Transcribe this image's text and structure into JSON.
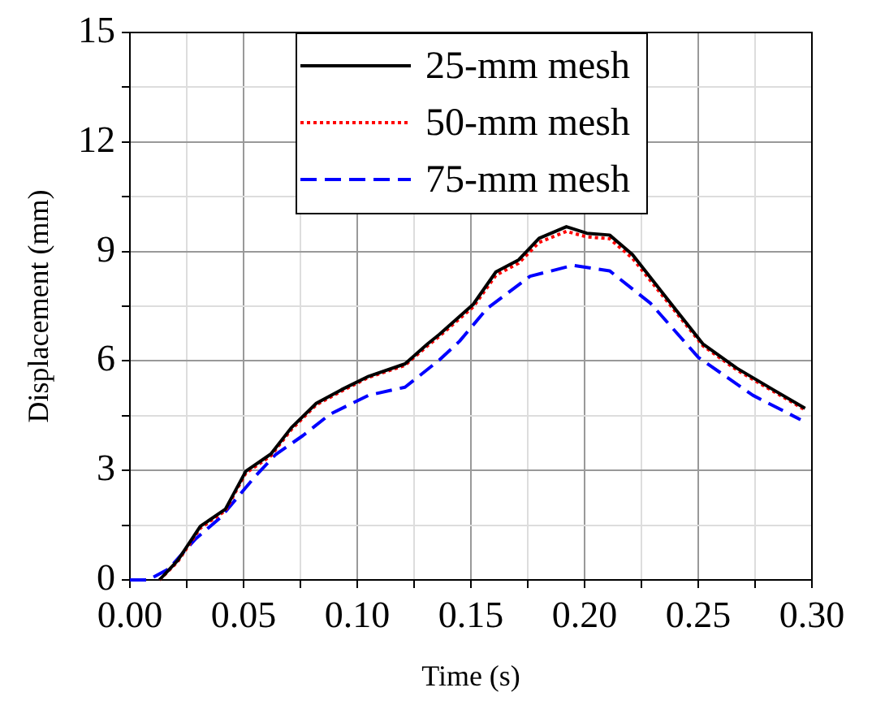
{
  "chart_data": {
    "type": "line",
    "xlabel": "Time (s)",
    "ylabel": "Displacement (mm)",
    "xlim": [
      0,
      0.3
    ],
    "ylim": [
      0,
      15
    ],
    "xticks": [
      {
        "value": 0,
        "label": "0.00"
      },
      {
        "value": 0.025,
        "label": null
      },
      {
        "value": 0.05,
        "label": "0.05"
      },
      {
        "value": 0.075,
        "label": null
      },
      {
        "value": 0.1,
        "label": "0.10"
      },
      {
        "value": 0.125,
        "label": null
      },
      {
        "value": 0.15,
        "label": "0.15"
      },
      {
        "value": 0.175,
        "label": null
      },
      {
        "value": 0.2,
        "label": "0.20"
      },
      {
        "value": 0.225,
        "label": null
      },
      {
        "value": 0.25,
        "label": "0.25"
      },
      {
        "value": 0.275,
        "label": null
      },
      {
        "value": 0.3,
        "label": "0.30"
      }
    ],
    "yticks": [
      0,
      {
        "value": 1.5,
        "label": null
      },
      3,
      {
        "value": 4.5,
        "label": null
      },
      6,
      {
        "value": 7.5,
        "label": null
      },
      9,
      {
        "value": 10.5,
        "label": null
      },
      12,
      {
        "value": 13.5,
        "label": null
      },
      15
    ],
    "grid": true,
    "legend": "top",
    "marker": "none",
    "series": [
      {
        "name": "25-mm mesh",
        "color": "#000000",
        "line_style": "solid",
        "x": [
          0.013,
          0.021,
          0.031,
          0.042,
          0.051,
          0.062,
          0.071,
          0.082,
          0.093,
          0.105,
          0.121,
          0.131,
          0.136,
          0.151,
          0.161,
          0.171,
          0.18,
          0.192,
          0.201,
          0.211,
          0.221,
          0.237,
          0.252,
          0.267,
          0.283,
          0.297
        ],
        "values": [
          0,
          0.53,
          1.47,
          1.94,
          2.98,
          3.45,
          4.17,
          4.84,
          5.21,
          5.58,
          5.92,
          6.47,
          6.72,
          7.55,
          8.44,
          8.77,
          9.36,
          9.68,
          9.5,
          9.45,
          8.92,
          7.65,
          6.47,
          5.8,
          5.21,
          4.7
        ]
      },
      {
        "name": "50-mm mesh",
        "color": "#ff0000",
        "line_style": "dotted",
        "x": [
          0.013,
          0.021,
          0.031,
          0.042,
          0.051,
          0.062,
          0.071,
          0.082,
          0.093,
          0.105,
          0.121,
          0.131,
          0.136,
          0.151,
          0.161,
          0.171,
          0.18,
          0.192,
          0.201,
          0.211,
          0.221,
          0.237,
          0.252,
          0.267,
          0.283,
          0.297
        ],
        "values": [
          0,
          0.5,
          1.42,
          1.9,
          2.93,
          3.4,
          4.12,
          4.8,
          5.17,
          5.55,
          5.88,
          6.42,
          6.67,
          7.48,
          8.35,
          8.68,
          9.25,
          9.55,
          9.4,
          9.35,
          8.82,
          7.58,
          6.42,
          5.75,
          5.17,
          4.66
        ]
      },
      {
        "name": "75-mm mesh",
        "color": "#0000ff",
        "line_style": "dashed",
        "x": [
          0,
          0.008,
          0.017,
          0.029,
          0.04,
          0.055,
          0.064,
          0.076,
          0.088,
          0.105,
          0.121,
          0.136,
          0.145,
          0.157,
          0.176,
          0.195,
          0.211,
          0.229,
          0.25,
          0.274,
          0.295
        ],
        "values": [
          0,
          0,
          0.3,
          1.13,
          1.72,
          2.83,
          3.43,
          3.95,
          4.54,
          5.06,
          5.28,
          6.02,
          6.54,
          7.43,
          8.32,
          8.62,
          8.47,
          7.58,
          6.1,
          5.06,
          4.39
        ]
      }
    ]
  }
}
